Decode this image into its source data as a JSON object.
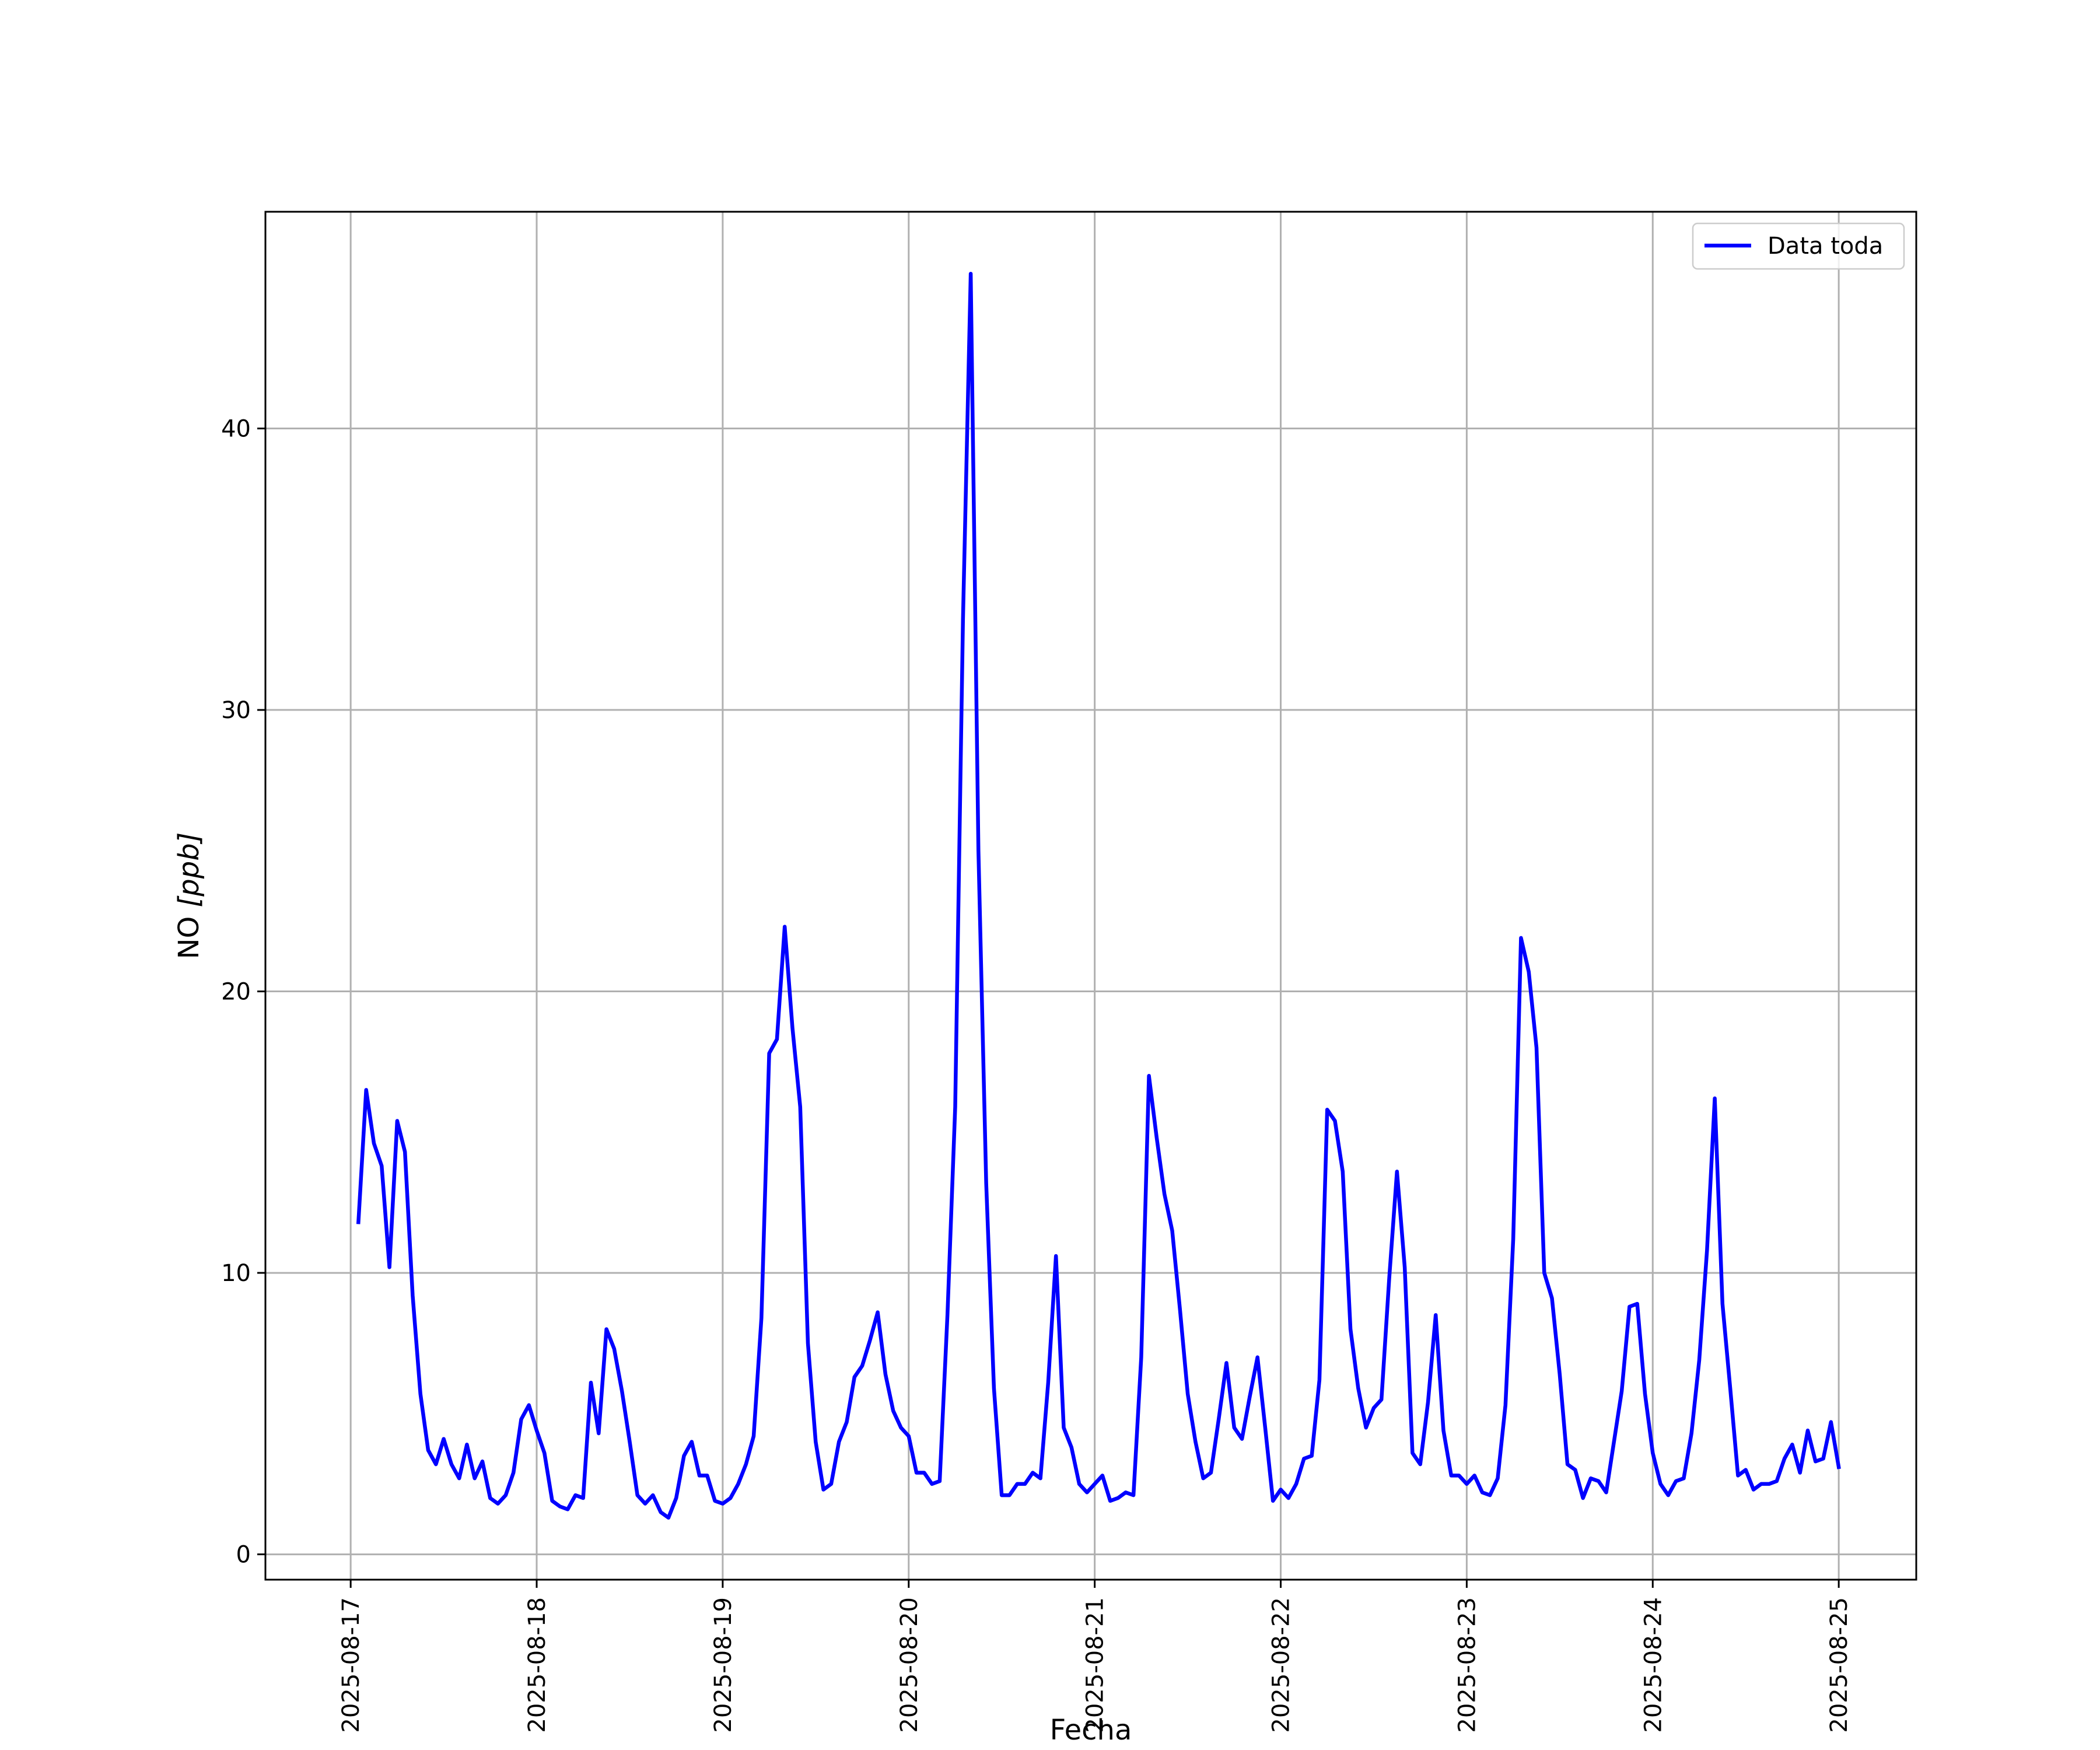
{
  "chart_data": {
    "type": "line",
    "title": "",
    "xlabel": "Fecha",
    "ylabel_main": "NO ",
    "ylabel_unit": "[ppb]",
    "xlim": [
      "2025-08-16 13:00",
      "2025-08-25 10:00"
    ],
    "ylim": [
      -0.9,
      47.7
    ],
    "yticks": [
      0,
      10,
      20,
      30,
      40
    ],
    "ytick_labels": [
      "0",
      "10",
      "20",
      "30",
      "40"
    ],
    "xticks": [
      "2025-08-17",
      "2025-08-18",
      "2025-08-19",
      "2025-08-20",
      "2025-08-21",
      "2025-08-22",
      "2025-08-23",
      "2025-08-24",
      "2025-08-25"
    ],
    "grid": true,
    "legend_position": "top-right",
    "series": [
      {
        "name": "Data toda",
        "color": "#0000ff",
        "x_start": "2025-08-17 01:00",
        "x_step_hours": 1,
        "values": [
          11.8,
          16.5,
          14.6,
          13.8,
          10.2,
          15.4,
          14.3,
          9.2,
          5.7,
          3.7,
          3.2,
          4.1,
          3.2,
          2.7,
          3.9,
          2.7,
          3.3,
          2.0,
          1.8,
          2.1,
          2.9,
          4.8,
          5.3,
          4.4,
          3.6,
          1.9,
          1.7,
          1.6,
          2.1,
          2.0,
          6.1,
          4.3,
          8.0,
          7.3,
          5.8,
          4.0,
          2.1,
          1.8,
          2.1,
          1.5,
          1.3,
          2.0,
          3.5,
          4.0,
          2.8,
          2.8,
          1.9,
          1.8,
          2.0,
          2.5,
          3.2,
          4.2,
          8.4,
          17.8,
          18.3,
          22.3,
          18.7,
          15.9,
          7.5,
          4.0,
          2.3,
          2.5,
          4.0,
          4.7,
          6.3,
          6.7,
          7.6,
          8.6,
          6.4,
          5.1,
          4.5,
          4.2,
          2.9,
          2.9,
          2.5,
          2.6,
          8.5,
          15.9,
          33.2,
          45.5,
          25.0,
          13.2,
          5.9,
          2.1,
          2.1,
          2.5,
          2.5,
          2.9,
          2.7,
          6.1,
          10.6,
          4.5,
          3.8,
          2.5,
          2.2,
          2.5,
          2.8,
          1.9,
          2.0,
          2.2,
          2.1,
          7.0,
          17.0,
          14.8,
          12.8,
          11.5,
          8.7,
          5.7,
          4.0,
          2.7,
          2.9,
          4.8,
          6.8,
          4.5,
          4.1,
          5.6,
          7.0,
          4.5,
          1.9,
          2.3,
          2.0,
          2.5,
          3.4,
          3.5,
          6.2,
          15.8,
          15.4,
          13.6,
          8.0,
          5.9,
          4.5,
          5.2,
          5.5,
          9.8,
          13.6,
          10.2,
          3.6,
          3.2,
          5.4,
          8.5,
          4.4,
          2.8,
          2.8,
          2.5,
          2.8,
          2.2,
          2.1,
          2.7,
          5.3,
          11.2,
          21.9,
          20.7,
          18.0,
          10.0,
          9.1,
          6.4,
          3.2,
          3.0,
          2.0,
          2.7,
          2.6,
          2.2,
          4.0,
          5.8,
          8.8,
          8.9,
          5.7,
          3.6,
          2.5,
          2.1,
          2.6,
          2.7,
          4.3,
          6.9,
          10.8,
          16.2,
          8.9,
          5.9,
          2.8,
          3.0,
          2.3,
          2.5,
          2.5,
          2.6,
          3.4,
          3.9,
          2.9,
          4.4,
          3.3,
          3.4,
          4.7,
          3.1
        ]
      }
    ]
  }
}
